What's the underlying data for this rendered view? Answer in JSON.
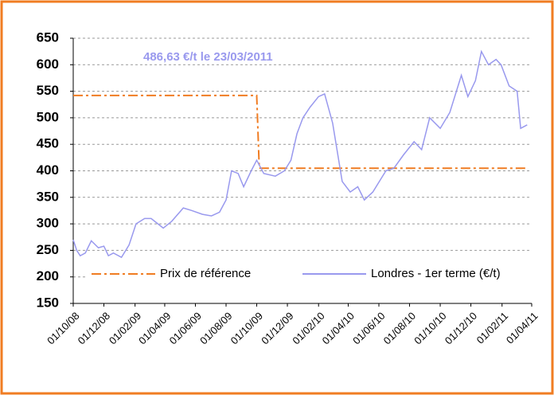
{
  "chart_data": {
    "type": "line",
    "annotation": "486,63 €/t le 23/03/2011",
    "xlim": [
      "01/10/08",
      "01/04/11"
    ],
    "xticks": [
      "01/10/08",
      "01/12/08",
      "01/02/09",
      "01/04/09",
      "01/06/09",
      "01/08/09",
      "01/10/09",
      "01/12/09",
      "01/02/10",
      "01/04/10",
      "01/06/10",
      "01/08/10",
      "01/10/10",
      "01/12/10",
      "01/02/11",
      "01/04/11"
    ],
    "ylim": [
      150,
      650
    ],
    "yticks": [
      150,
      200,
      250,
      300,
      350,
      400,
      450,
      500,
      550,
      600,
      650
    ],
    "grid": true,
    "series": [
      {
        "name": "Prix de référence",
        "color": "#f07c22",
        "dash": "dashdot",
        "x": [
          "01/10/08",
          "01/10/09",
          "06/10/09",
          "23/03/11"
        ],
        "values": [
          542,
          542,
          405,
          405
        ]
      },
      {
        "name": "Londres - 1er terme (€/t)",
        "color": "#9999ee",
        "dash": "solid",
        "x": [
          "01/10/08",
          "08/10/08",
          "15/10/08",
          "25/10/08",
          "06/11/08",
          "20/11/08",
          "01/12/08",
          "10/12/08",
          "20/12/08",
          "05/01/09",
          "20/01/09",
          "03/02/09",
          "20/02/09",
          "05/03/09",
          "29/03/09",
          "15/04/09",
          "08/05/09",
          "25/05/09",
          "15/06/09",
          "03/07/09",
          "19/07/09",
          "01/08/09",
          "12/08/09",
          "25/08/09",
          "05/09/09",
          "20/09/09",
          "01/10/09",
          "15/10/09",
          "07/11/09",
          "25/11/09",
          "08/12/09",
          "20/12/09",
          "01/01/10",
          "15/01/10",
          "01/02/10",
          "13/02/10",
          "01/03/10",
          "20/03/10",
          "05/04/10",
          "20/04/10",
          "03/05/10",
          "20/05/10",
          "15/06/10",
          "01/07/10",
          "20/07/10",
          "10/08/10",
          "25/08/10",
          "10/09/10",
          "01/10/10",
          "20/10/10",
          "12/11/10",
          "25/11/10",
          "10/12/10",
          "22/12/10",
          "05/01/11",
          "20/01/11",
          "30/01/11",
          "15/02/11",
          "03/03/11",
          "10/03/11",
          "23/03/11"
        ],
        "values": [
          270,
          250,
          240,
          245,
          268,
          255,
          258,
          240,
          245,
          237,
          260,
          300,
          310,
          310,
          292,
          305,
          330,
          325,
          318,
          315,
          322,
          345,
          400,
          395,
          370,
          400,
          420,
          395,
          390,
          400,
          420,
          470,
          500,
          520,
          540,
          545,
          490,
          380,
          360,
          370,
          345,
          360,
          400,
          405,
          430,
          455,
          440,
          500,
          480,
          510,
          580,
          540,
          570,
          625,
          600,
          610,
          600,
          560,
          550,
          480,
          486.63
        ]
      }
    ],
    "legend": "bottom"
  }
}
